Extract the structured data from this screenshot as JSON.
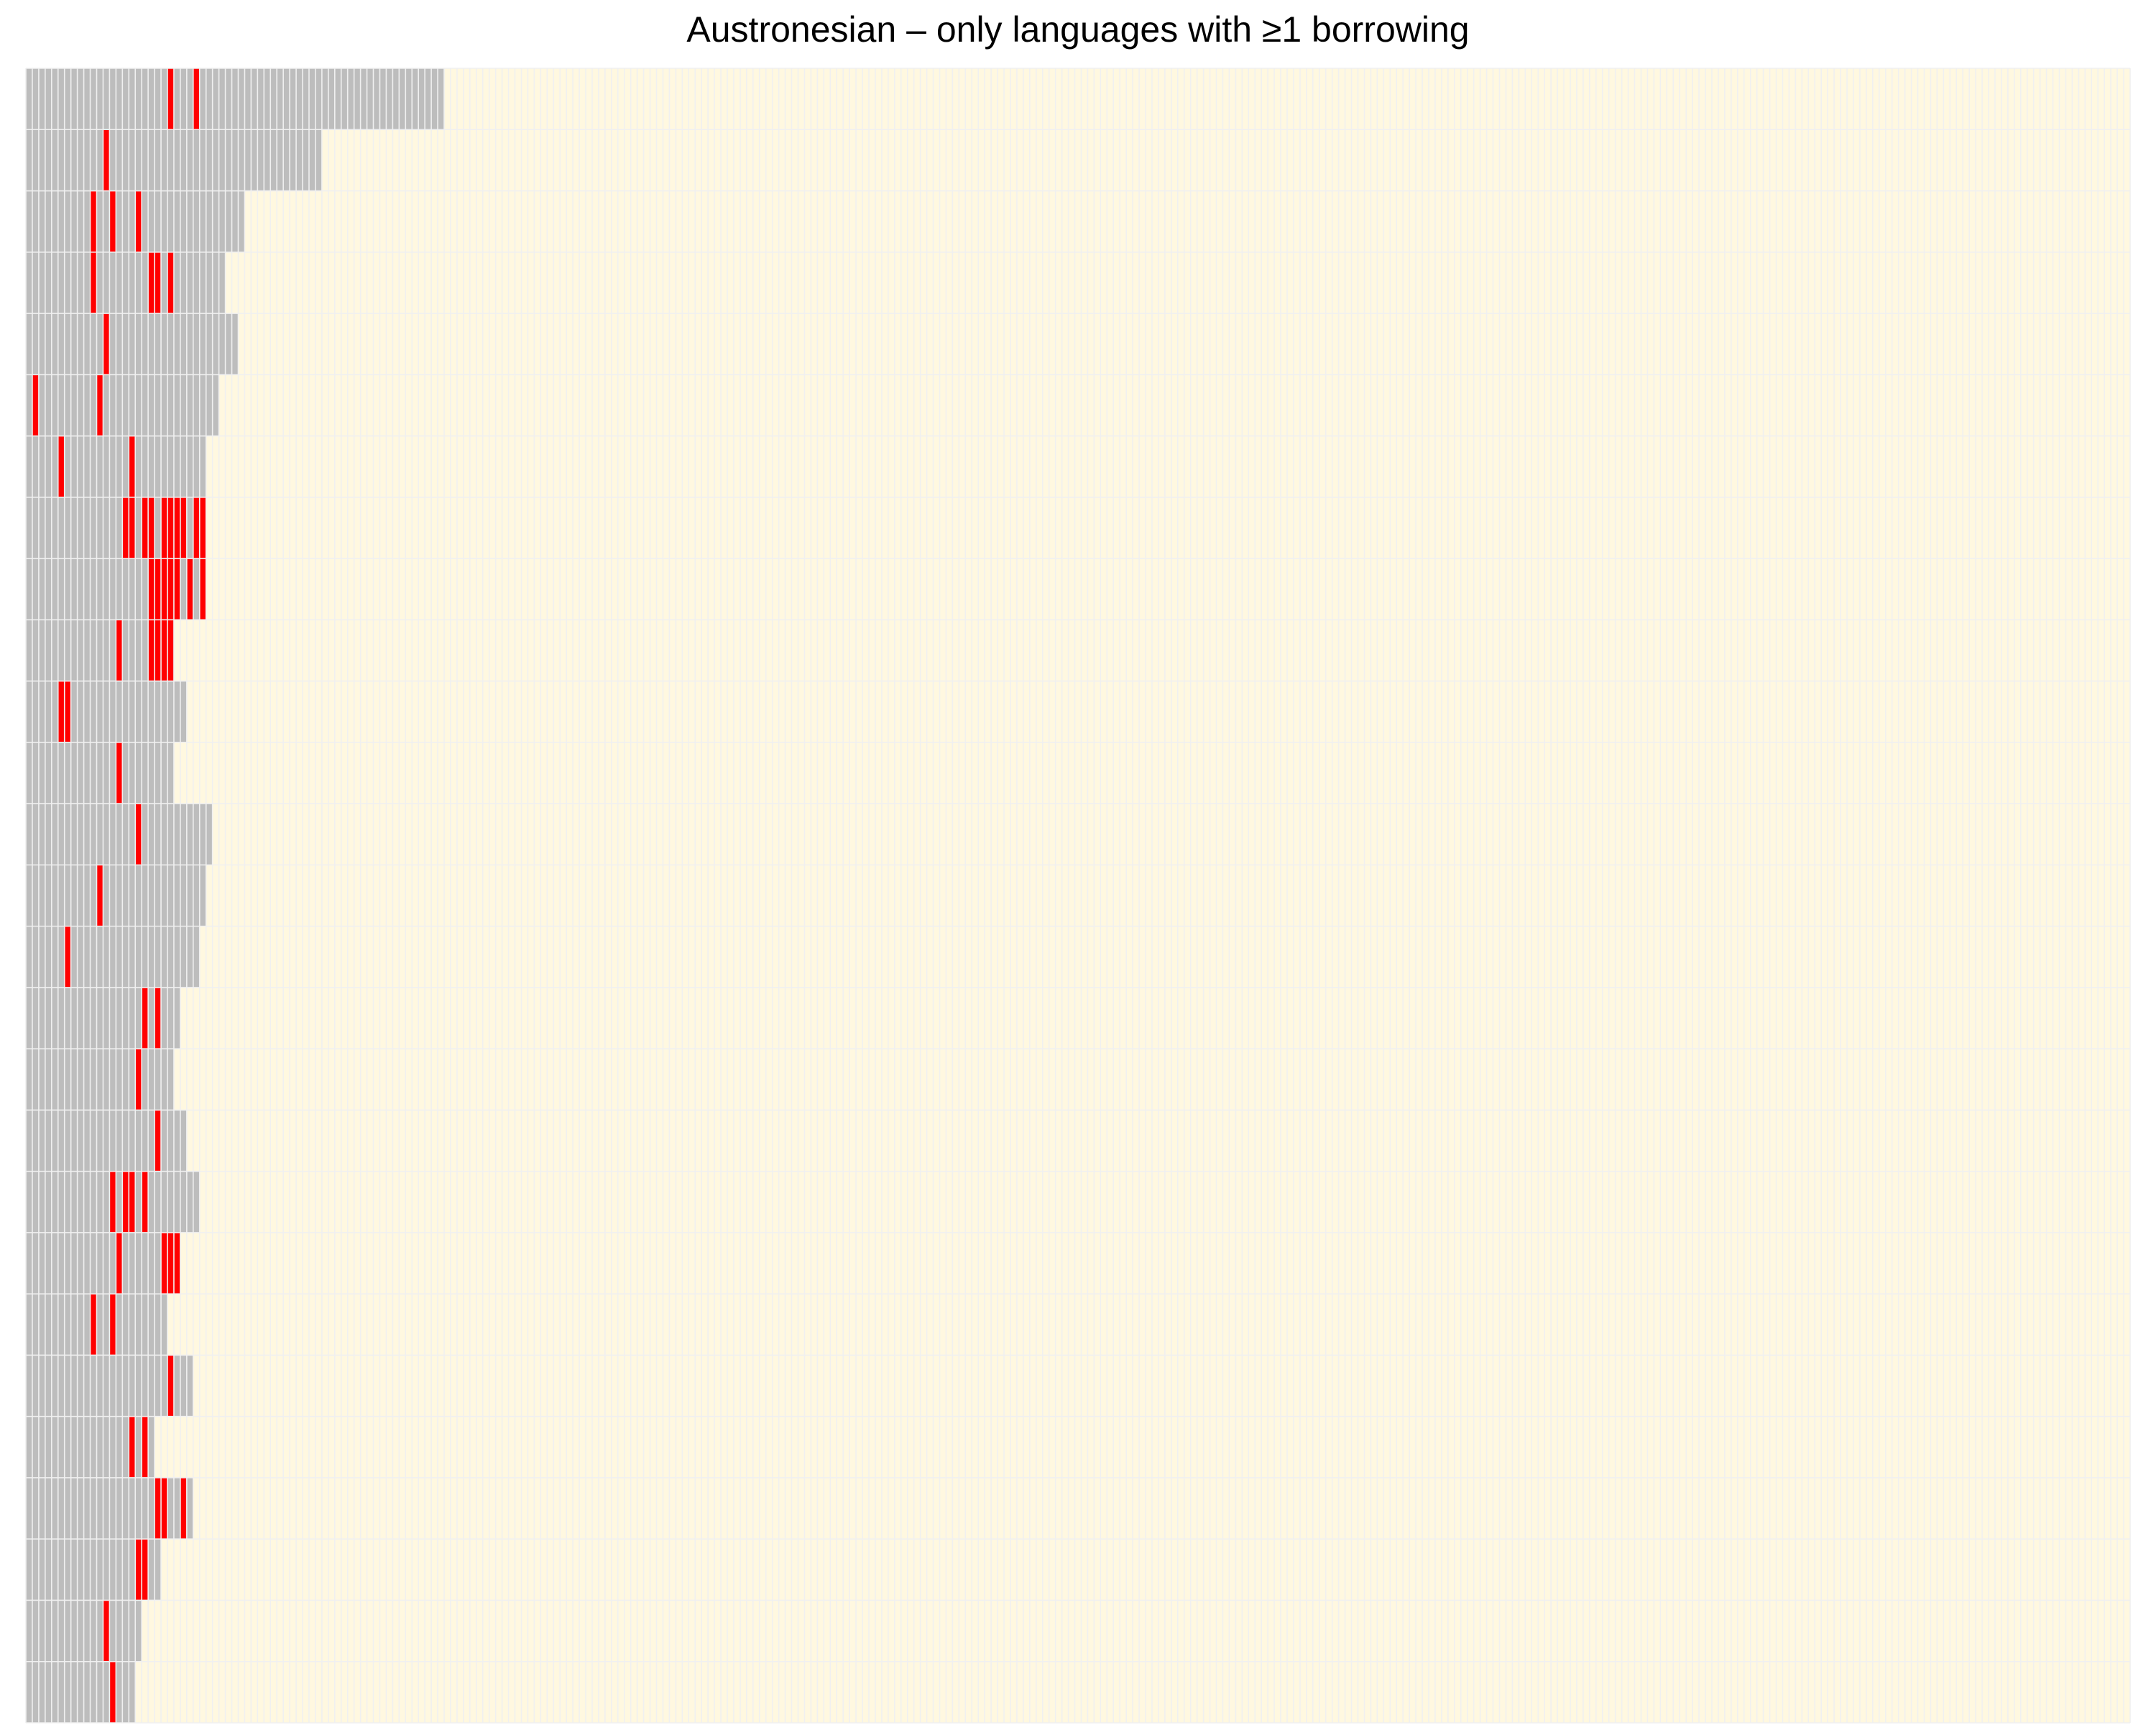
{
  "chart_data": {
    "type": "heatmap",
    "title": "Austronesian – only languages with ≥1 borrowing",
    "n_cols": 327,
    "n_rows": 27,
    "grid": true,
    "legend": "none",
    "colors": {
      "empty": "#fff8e0",
      "present": "#bdbdbd",
      "borrowed": "#ff0000",
      "gridline": "#f0f0f0"
    },
    "rows": [
      "G22 B1 G1 G2 B1 G1 G2 G5 G1 G1 G1 G2 G1 G1 G1 G1 G1 G5 G15",
      "G4 G4 G3 G1 B1 G1 G1 G2 G1 G1 G1 G6 G1 G1 G1 G1 G1 G3 G12",
      "G10 B1 G2 B1 G3 B1 G6 G1 G1 G2 G1 G1 G1 G3",
      "G10 B1 G3 G4 G1 B2 G1 B1 G3 G1 G4",
      "G7 G2 G3 B1 G1 G6 G1 G2 G1 G1 G1 G1 G6",
      "G1 B1 G5 G1 G1 G2 B1 G1 G2 G1 G1 G2 G2 G2 G1 G6",
      "G5 B1 G4 G2 G4 B1 G1 G1 G1 G3 G1 G3 G1",
      "G4 G4 G1 G1 G5 B2 G1 B2 G1 B1 B1 B2 G1 B2",
      "G19 B3 B2 G1 B1 G1 B1",
      "G8 G1 G4 G1 B1 G4 B2 B1 B1",
      "G5 B2 G5 G2 G1 G1 G4 G1 G3 G1",
      "G14 B1 G6 G1 G1",
      "G17 B1 G6 G1 G1 G1 G1 G1",
      "G11 B1 G6 G2 G1 G1 G1 G3 G1 G1",
      "G6 B1 G11 G7 G1 G1",
      "G18 B1 G1 B1 G1 G2",
      "G17 B1 G5",
      "G20 B1 G3 G1",
      "G7 G1 G1 G4 B1 G1 B2 G1 B1 G1 G1 G1 G2 G1 G1 G1",
      "G14 B1 G6 B3",
      "G10 B1 G1 G1 B1 G1 G5 G2",
      "G22 B1 G1 G2",
      "G9 G1 G1 G1 G2 G1 G1 B1 G1 B1 G1",
      "G11 G1 G6 G2 B2 G1 G1 B1 G1",
      "G17 B2 G2",
      "G4 G7 G1 B1 G3 G1 G1",
      "G7 G1 G1 G1 G1 G2 B1 G1 G1 G1"
    ]
  }
}
